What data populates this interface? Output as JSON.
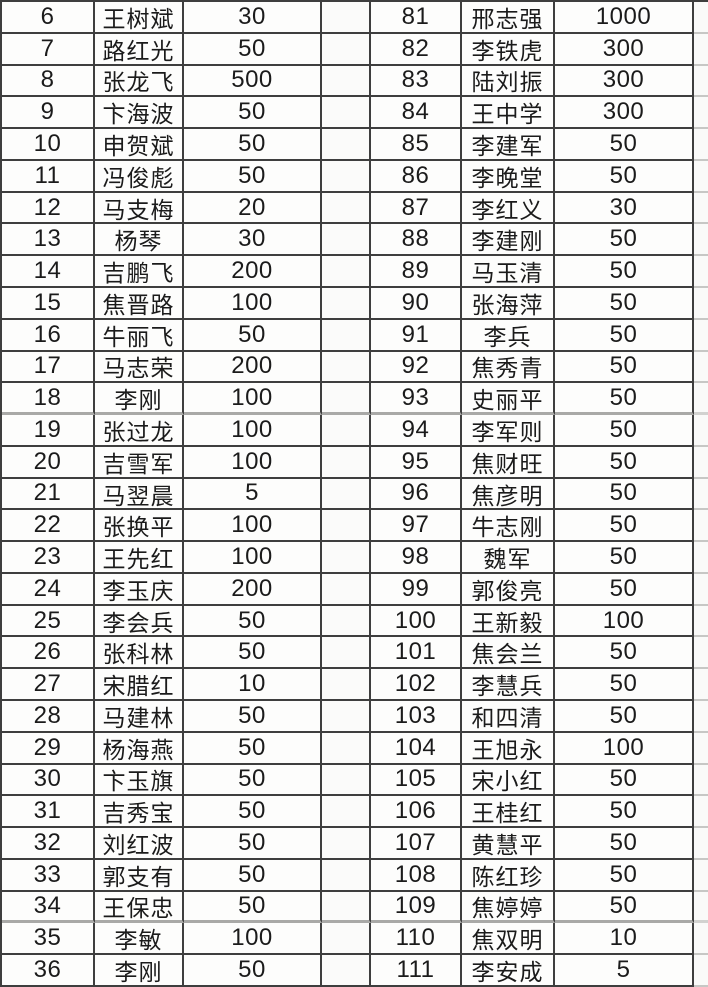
{
  "page": {
    "background_color": "#fcfcfb",
    "grid_line_color": "#3e3e3e",
    "light_line_color": "#a9a9a7",
    "text_color": "#1b1b1b"
  },
  "left_table": {
    "rows": [
      {
        "no": "6",
        "name": "王树斌",
        "amount": "30"
      },
      {
        "no": "7",
        "name": "路红光",
        "amount": "50"
      },
      {
        "no": "8",
        "name": "张龙飞",
        "amount": "500"
      },
      {
        "no": "9",
        "name": "卞海波",
        "amount": "50"
      },
      {
        "no": "10",
        "name": "申贺斌",
        "amount": "50"
      },
      {
        "no": "11",
        "name": "冯俊彪",
        "amount": "50"
      },
      {
        "no": "12",
        "name": "马支梅",
        "amount": "20"
      },
      {
        "no": "13",
        "name": "杨琴",
        "amount": "30"
      },
      {
        "no": "14",
        "name": "吉鹏飞",
        "amount": "200"
      },
      {
        "no": "15",
        "name": "焦晋路",
        "amount": "100"
      },
      {
        "no": "16",
        "name": "牛丽飞",
        "amount": "50"
      },
      {
        "no": "17",
        "name": "马志荣",
        "amount": "200"
      },
      {
        "no": "18",
        "name": "李刚",
        "amount": "100"
      },
      {
        "no": "19",
        "name": "张过龙",
        "amount": "100"
      },
      {
        "no": "20",
        "name": "吉雪军",
        "amount": "100"
      },
      {
        "no": "21",
        "name": "马翌晨",
        "amount": "5"
      },
      {
        "no": "22",
        "name": "张换平",
        "amount": "100"
      },
      {
        "no": "23",
        "name": "王先红",
        "amount": "100"
      },
      {
        "no": "24",
        "name": "李玉庆",
        "amount": "200"
      },
      {
        "no": "25",
        "name": "李会兵",
        "amount": "50"
      },
      {
        "no": "26",
        "name": "张科林",
        "amount": "50"
      },
      {
        "no": "27",
        "name": "宋腊红",
        "amount": "10"
      },
      {
        "no": "28",
        "name": "马建林",
        "amount": "50"
      },
      {
        "no": "29",
        "name": "杨海燕",
        "amount": "50"
      },
      {
        "no": "30",
        "name": "卞玉旗",
        "amount": "50"
      },
      {
        "no": "31",
        "name": "吉秀宝",
        "amount": "50"
      },
      {
        "no": "32",
        "name": "刘红波",
        "amount": "50"
      },
      {
        "no": "33",
        "name": "郭支有",
        "amount": "50"
      },
      {
        "no": "34",
        "name": "王保忠",
        "amount": "50"
      },
      {
        "no": "35",
        "name": "李敏",
        "amount": "100"
      },
      {
        "no": "36",
        "name": "李刚",
        "amount": "50"
      }
    ]
  },
  "right_table": {
    "rows": [
      {
        "no": "81",
        "name": "邢志强",
        "amount": "1000"
      },
      {
        "no": "82",
        "name": "李铁虎",
        "amount": "300"
      },
      {
        "no": "83",
        "name": "陆刘振",
        "amount": "300"
      },
      {
        "no": "84",
        "name": "王中学",
        "amount": "300"
      },
      {
        "no": "85",
        "name": "李建军",
        "amount": "50"
      },
      {
        "no": "86",
        "name": "李晚堂",
        "amount": "50"
      },
      {
        "no": "87",
        "name": "李红义",
        "amount": "30"
      },
      {
        "no": "88",
        "name": "李建刚",
        "amount": "50"
      },
      {
        "no": "89",
        "name": "马玉清",
        "amount": "50"
      },
      {
        "no": "90",
        "name": "张海萍",
        "amount": "50"
      },
      {
        "no": "91",
        "name": "李兵",
        "amount": "50"
      },
      {
        "no": "92",
        "name": "焦秀青",
        "amount": "50"
      },
      {
        "no": "93",
        "name": "史丽平",
        "amount": "50"
      },
      {
        "no": "94",
        "name": "李军则",
        "amount": "50"
      },
      {
        "no": "95",
        "name": "焦财旺",
        "amount": "50"
      },
      {
        "no": "96",
        "name": "焦彦明",
        "amount": "50"
      },
      {
        "no": "97",
        "name": "牛志刚",
        "amount": "50"
      },
      {
        "no": "98",
        "name": "魏军",
        "amount": "50"
      },
      {
        "no": "99",
        "name": "郭俊亮",
        "amount": "50"
      },
      {
        "no": "100",
        "name": "王新毅",
        "amount": "100"
      },
      {
        "no": "101",
        "name": "焦会兰",
        "amount": "50"
      },
      {
        "no": "102",
        "name": "李慧兵",
        "amount": "50"
      },
      {
        "no": "103",
        "name": "和四清",
        "amount": "50"
      },
      {
        "no": "104",
        "name": "王旭永",
        "amount": "100"
      },
      {
        "no": "105",
        "name": "宋小红",
        "amount": "50"
      },
      {
        "no": "106",
        "name": "王桂红",
        "amount": "50"
      },
      {
        "no": "107",
        "name": "黄慧平",
        "amount": "50"
      },
      {
        "no": "108",
        "name": "陈红珍",
        "amount": "50"
      },
      {
        "no": "109",
        "name": "焦婷婷",
        "amount": "50"
      },
      {
        "no": "110",
        "name": "焦双明",
        "amount": "10"
      },
      {
        "no": "111",
        "name": "李安成",
        "amount": "5"
      }
    ]
  }
}
